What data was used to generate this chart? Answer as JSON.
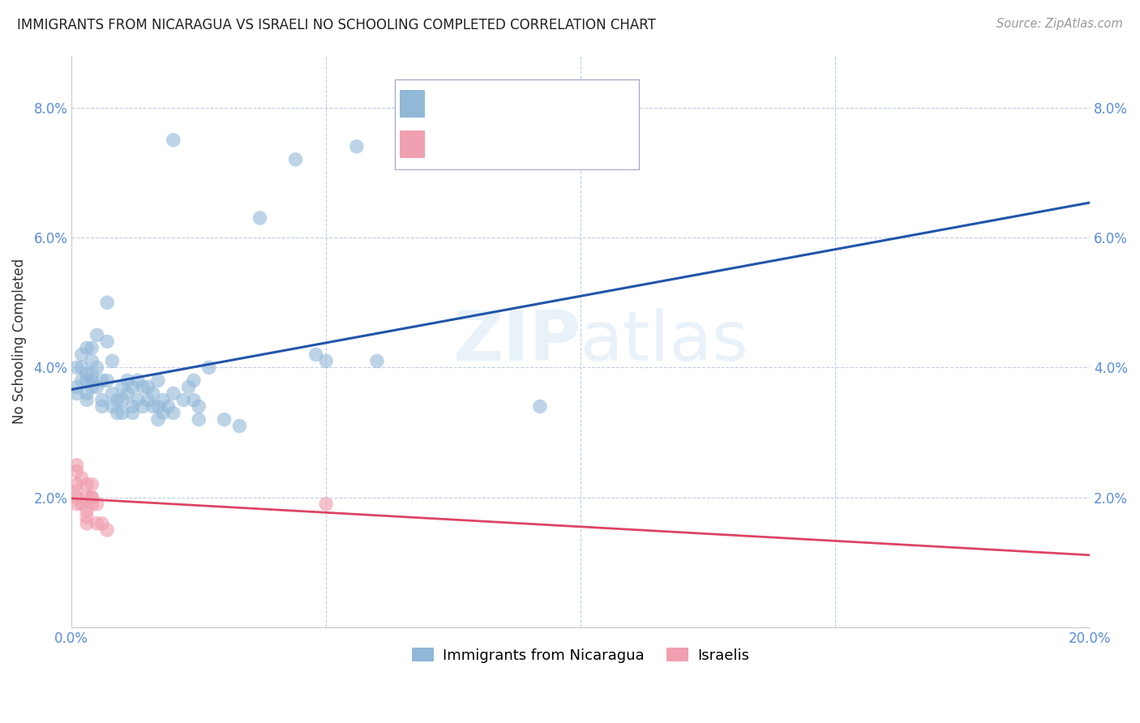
{
  "title": "IMMIGRANTS FROM NICARAGUA VS ISRAELI NO SCHOOLING COMPLETED CORRELATION CHART",
  "source": "Source: ZipAtlas.com",
  "ylabel": "No Schooling Completed",
  "xlim": [
    0.0,
    0.2
  ],
  "ylim": [
    0.0,
    0.088
  ],
  "xticks": [
    0.0,
    0.05,
    0.1,
    0.15,
    0.2
  ],
  "yticks": [
    0.0,
    0.02,
    0.04,
    0.06,
    0.08
  ],
  "watermark": "ZIPatlas",
  "nicaragua_color": "#92b8d8",
  "israelis_color": "#f0a0b0",
  "nicaragua_line_color": "#2255aa",
  "israelis_line_color": "#dd4466",
  "nicaragua_points": [
    [
      0.001,
      0.037
    ],
    [
      0.001,
      0.04
    ],
    [
      0.001,
      0.036
    ],
    [
      0.002,
      0.042
    ],
    [
      0.002,
      0.038
    ],
    [
      0.002,
      0.04
    ],
    [
      0.003,
      0.043
    ],
    [
      0.003,
      0.039
    ],
    [
      0.003,
      0.036
    ],
    [
      0.003,
      0.038
    ],
    [
      0.003,
      0.035
    ],
    [
      0.004,
      0.041
    ],
    [
      0.004,
      0.038
    ],
    [
      0.004,
      0.037
    ],
    [
      0.004,
      0.043
    ],
    [
      0.004,
      0.039
    ],
    [
      0.005,
      0.045
    ],
    [
      0.005,
      0.04
    ],
    [
      0.005,
      0.037
    ],
    [
      0.006,
      0.038
    ],
    [
      0.006,
      0.035
    ],
    [
      0.006,
      0.034
    ],
    [
      0.007,
      0.05
    ],
    [
      0.007,
      0.044
    ],
    [
      0.007,
      0.038
    ],
    [
      0.008,
      0.041
    ],
    [
      0.008,
      0.036
    ],
    [
      0.008,
      0.034
    ],
    [
      0.009,
      0.035
    ],
    [
      0.009,
      0.033
    ],
    [
      0.01,
      0.037
    ],
    [
      0.01,
      0.035
    ],
    [
      0.01,
      0.033
    ],
    [
      0.011,
      0.038
    ],
    [
      0.011,
      0.036
    ],
    [
      0.012,
      0.037
    ],
    [
      0.012,
      0.034
    ],
    [
      0.012,
      0.033
    ],
    [
      0.013,
      0.038
    ],
    [
      0.013,
      0.035
    ],
    [
      0.014,
      0.037
    ],
    [
      0.014,
      0.034
    ],
    [
      0.015,
      0.037
    ],
    [
      0.015,
      0.035
    ],
    [
      0.016,
      0.036
    ],
    [
      0.016,
      0.034
    ],
    [
      0.017,
      0.038
    ],
    [
      0.017,
      0.034
    ],
    [
      0.017,
      0.032
    ],
    [
      0.018,
      0.035
    ],
    [
      0.018,
      0.033
    ],
    [
      0.019,
      0.034
    ],
    [
      0.02,
      0.036
    ],
    [
      0.02,
      0.033
    ],
    [
      0.022,
      0.035
    ],
    [
      0.023,
      0.037
    ],
    [
      0.024,
      0.038
    ],
    [
      0.024,
      0.035
    ],
    [
      0.025,
      0.034
    ],
    [
      0.025,
      0.032
    ],
    [
      0.027,
      0.04
    ],
    [
      0.03,
      0.032
    ],
    [
      0.033,
      0.031
    ],
    [
      0.02,
      0.075
    ],
    [
      0.044,
      0.072
    ],
    [
      0.037,
      0.063
    ],
    [
      0.048,
      0.042
    ],
    [
      0.05,
      0.041
    ],
    [
      0.056,
      0.074
    ],
    [
      0.06,
      0.041
    ],
    [
      0.092,
      0.034
    ]
  ],
  "israelis_points": [
    [
      0.001,
      0.025
    ],
    [
      0.001,
      0.024
    ],
    [
      0.001,
      0.022
    ],
    [
      0.001,
      0.021
    ],
    [
      0.001,
      0.02
    ],
    [
      0.001,
      0.019
    ],
    [
      0.002,
      0.023
    ],
    [
      0.002,
      0.019
    ],
    [
      0.003,
      0.022
    ],
    [
      0.003,
      0.02
    ],
    [
      0.003,
      0.018
    ],
    [
      0.003,
      0.017
    ],
    [
      0.003,
      0.016
    ],
    [
      0.004,
      0.022
    ],
    [
      0.004,
      0.02
    ],
    [
      0.004,
      0.02
    ],
    [
      0.004,
      0.019
    ],
    [
      0.005,
      0.019
    ],
    [
      0.005,
      0.016
    ],
    [
      0.006,
      0.016
    ],
    [
      0.007,
      0.015
    ],
    [
      0.05,
      0.019
    ]
  ]
}
